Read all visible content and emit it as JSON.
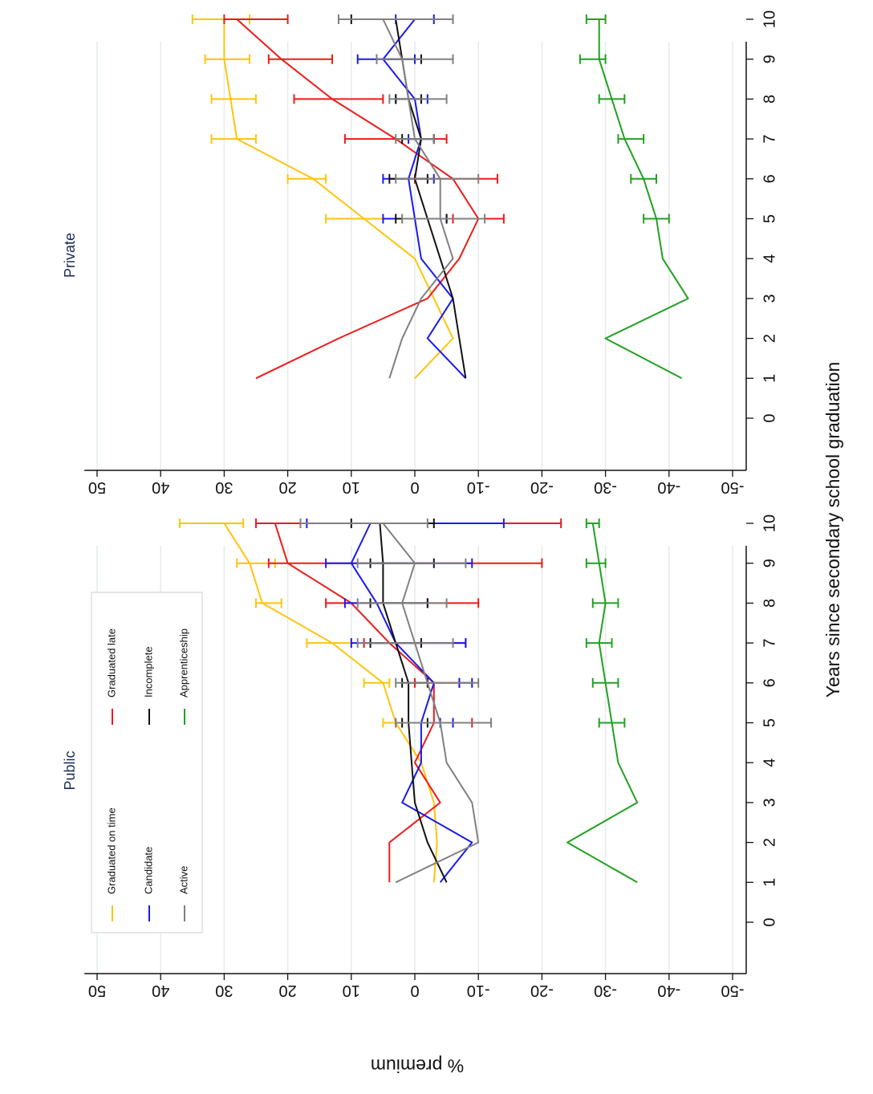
{
  "chart_data": {
    "type": "line",
    "xlabel": "Years since secondary school graduation",
    "ylabel": "% premium",
    "x": [
      0,
      1,
      2,
      3,
      4,
      5,
      6,
      7,
      8,
      9,
      10
    ],
    "x_ticks": [
      "0",
      "1",
      "2",
      "3",
      "4",
      "5",
      "6",
      "7",
      "8",
      "9",
      "10"
    ],
    "y_ticks": [
      "50",
      "40",
      "30",
      "20",
      "10",
      "0",
      "-10",
      "-20",
      "-30",
      "-40",
      "-50"
    ],
    "xlim": [
      -0.3,
      10.4
    ],
    "ylim": [
      -52,
      52
    ],
    "grid": true,
    "legend": {
      "placement": "inside-left-panel"
    },
    "colors": {
      "Graduated on time": "#ffc40c",
      "Graduated late": "#ee1a1a",
      "Candidate": "#1a1aee",
      "Incomplete": "#111111",
      "Active": "#808080",
      "Apprenticeship": "#22a022"
    },
    "panels": [
      {
        "title": "Public",
        "series": [
          {
            "name": "Graduated on time",
            "x": [
              1,
              2,
              3,
              4,
              5,
              6,
              7,
              8,
              9,
              10
            ],
            "y": [
              -3,
              -3.5,
              -3,
              -1,
              3,
              5,
              13,
              24,
              26,
              30
            ],
            "ci_from": 5,
            "ci_lo": [
              2,
              4,
              10,
              21,
              22,
              27
            ],
            "ci_hi": [
              5,
              8,
              17,
              25,
              28,
              37
            ]
          },
          {
            "name": "Graduated late",
            "x": [
              1,
              2,
              3,
              4,
              5,
              6,
              7,
              8,
              9,
              10
            ],
            "y": [
              4,
              4,
              -4,
              0,
              -3,
              -3,
              4,
              10,
              20,
              22
            ],
            "ci_from": 5,
            "ci_lo": [
              -9,
              -7,
              -8,
              -10,
              -20,
              -23
            ],
            "ci_hi": [
              3,
              0,
              8,
              14,
              23,
              25
            ]
          },
          {
            "name": "Candidate",
            "x": [
              1,
              2,
              3,
              4,
              5,
              6,
              7,
              8,
              9,
              10
            ],
            "y": [
              -4,
              -9,
              2,
              -1,
              -1,
              -3,
              3,
              6,
              10,
              7
            ],
            "ci_from": 5,
            "ci_lo": [
              -6,
              -7,
              -8,
              -2,
              -9,
              -14
            ],
            "ci_hi": [
              -4,
              -9,
              10,
              11,
              14,
              17
            ]
          },
          {
            "name": "Incomplete",
            "x": [
              1,
              2,
              3,
              4,
              5,
              6,
              7,
              8,
              9,
              10
            ],
            "y": [
              -5,
              -2,
              0,
              0.5,
              1,
              1,
              3,
              5,
              5,
              5.5
            ],
            "ci_from": 5,
            "ci_lo": [
              -2,
              -2,
              -1,
              -2,
              -3,
              -3
            ],
            "ci_hi": [
              2,
              2,
              7,
              7,
              7,
              10
            ]
          },
          {
            "name": "Active",
            "x": [
              1,
              2,
              3,
              4,
              5,
              6,
              7,
              8,
              9,
              10
            ],
            "y": [
              3,
              -10,
              -9,
              -5,
              -4,
              -2,
              0,
              2,
              0,
              5
            ],
            "ci_from": 5,
            "ci_lo": [
              -12,
              -10,
              -6,
              -5,
              -8,
              -2
            ],
            "ci_hi": [
              3,
              3,
              9,
              9,
              9,
              18
            ]
          },
          {
            "name": "Apprenticeship",
            "x": [
              1,
              2,
              3,
              4,
              5,
              6,
              7,
              8,
              9,
              10
            ],
            "y": [
              -35,
              -24,
              -35,
              -32,
              -31,
              -30,
              -29,
              -30,
              -29,
              -28
            ],
            "ci_from": 5,
            "ci_lo": [
              -33,
              -32,
              -31,
              -32,
              -30,
              -29
            ],
            "ci_hi": [
              -29,
              -28,
              -27,
              -28,
              -27,
              -27
            ]
          }
        ]
      },
      {
        "title": "Private",
        "series": [
          {
            "name": "Graduated on time",
            "x": [
              1,
              2,
              3,
              4,
              5,
              6,
              7,
              8,
              9,
              10
            ],
            "y": [
              0,
              -6,
              -3,
              0,
              8,
              16,
              28,
              29,
              30,
              30
            ],
            "ci_from": 5,
            "ci_lo": [
              2,
              14,
              25,
              25,
              26,
              26
            ],
            "ci_hi": [
              14,
              20,
              32,
              32,
              33,
              35
            ]
          },
          {
            "name": "Graduated late",
            "x": [
              1,
              2,
              3,
              4,
              5,
              6,
              7,
              8,
              9,
              10
            ],
            "y": [
              25,
              12,
              -2,
              -7,
              -10,
              -6,
              3,
              13,
              21,
              28
            ],
            "ci_from": 5,
            "ci_lo": [
              -14,
              -13,
              -5,
              5,
              13,
              20
            ],
            "ci_hi": [
              -6,
              0,
              11,
              19,
              23,
              30
            ]
          },
          {
            "name": "Candidate",
            "x": [
              1,
              2,
              3,
              4,
              5,
              6,
              7,
              8,
              9,
              10
            ],
            "y": [
              -8,
              -2,
              -6,
              -1,
              0,
              1,
              -1,
              0,
              5,
              0
            ],
            "ci_from": 5,
            "ci_lo": [
              -5,
              -3,
              -3,
              -2,
              0,
              -3
            ],
            "ci_hi": [
              5,
              5,
              1,
              3,
              9,
              3
            ]
          },
          {
            "name": "Incomplete",
            "x": [
              1,
              2,
              3,
              4,
              5,
              6,
              7,
              8,
              9,
              10
            ],
            "y": [
              -8,
              -7,
              -6,
              -4,
              -2,
              0,
              -1,
              1,
              2,
              3
            ],
            "ci_from": 5,
            "ci_lo": [
              -5,
              -2,
              -3,
              -1,
              -1,
              -6
            ],
            "ci_hi": [
              3,
              4,
              2,
              3,
              6,
              10
            ]
          },
          {
            "name": "Active",
            "x": [
              1,
              2,
              3,
              4,
              5,
              6,
              7,
              8,
              9,
              10
            ],
            "y": [
              4,
              2,
              -1,
              -6,
              -4,
              -4,
              0,
              1,
              2,
              5
            ],
            "ci_from": 5,
            "ci_lo": [
              -11,
              -10,
              -3,
              -5,
              -6,
              -6
            ],
            "ci_hi": [
              2,
              3,
              3,
              4,
              6,
              12
            ]
          },
          {
            "name": "Apprenticeship",
            "x": [
              1,
              2,
              3,
              4,
              5,
              6,
              7,
              8,
              9,
              10
            ],
            "y": [
              -42,
              -30,
              -43,
              -39,
              -38,
              -36,
              -33,
              -31,
              -29,
              -29
            ],
            "ci_from": 5,
            "ci_lo": [
              -40,
              -38,
              -36,
              -33,
              -30,
              -30
            ],
            "ci_hi": [
              -36,
              -34,
              -32,
              -29,
              -26,
              -27
            ]
          }
        ]
      }
    ]
  }
}
